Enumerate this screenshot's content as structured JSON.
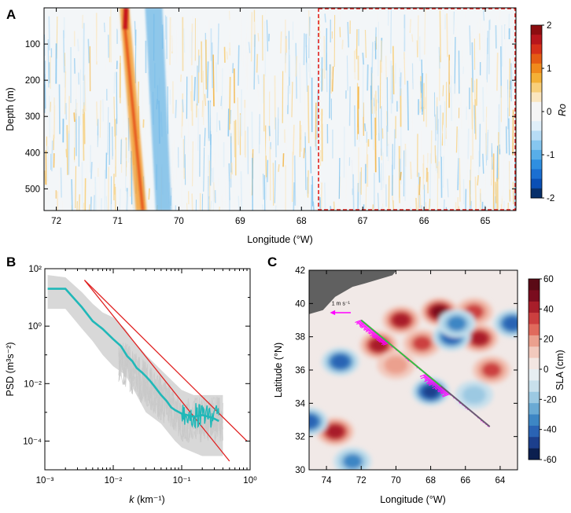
{
  "chart_data": [
    {
      "panel": "A",
      "type": "heatmap",
      "xlabel": "Longitude (°W)",
      "ylabel": "Depth (m)",
      "xlim": [
        72.2,
        64.5
      ],
      "ylim": [
        0,
        560
      ],
      "x_ticks": [
        "72",
        "71",
        "70",
        "69",
        "68",
        "67",
        "66",
        "65"
      ],
      "y_ticks": [
        "100",
        "200",
        "300",
        "400",
        "500"
      ],
      "colorbar": {
        "label": "Ro",
        "range": [
          -2,
          2
        ],
        "ticks": [
          "2",
          "1",
          "0",
          "-1",
          "-2"
        ],
        "colors": [
          "#08306b",
          "#0a4fb5",
          "#1b6fd1",
          "#2f8fe0",
          "#58aee8",
          "#86c6ef",
          "#b7dcf5",
          "#e0eff9",
          "#f5f5f5",
          "#f5f5f5",
          "#fbe6bf",
          "#f8cf7a",
          "#f4b036",
          "#f08a1c",
          "#e55c14",
          "#d6301a",
          "#b7161c",
          "#8c0d10"
        ]
      },
      "features": [
        {
          "name": "positive Ro band",
          "lon_top": 70.85,
          "lon_bottom": 70.55,
          "depth_range": [
            0,
            560
          ],
          "max_ro": 2
        },
        {
          "name": "negative Ro band",
          "lon_top": 70.5,
          "lon_bottom": 70.3,
          "depth_range": [
            0,
            560
          ],
          "min_ro": -1
        }
      ],
      "highlight_box": {
        "lon_range": [
          67.75,
          64.5
        ],
        "depth_range": [
          0,
          560
        ],
        "style": "red dashed"
      }
    },
    {
      "panel": "B",
      "type": "line",
      "scale": "log-log",
      "xlabel": "k (km⁻¹)",
      "ylabel": "PSD (m³s⁻²)",
      "xlim": [
        0.001,
        1
      ],
      "ylim": [
        1e-05,
        100
      ],
      "x_ticks": [
        "10⁻³",
        "10⁻²",
        "10⁻¹",
        "10⁰"
      ],
      "y_ticks": [
        "10²",
        "10⁰",
        "10⁻²",
        "10⁻⁴"
      ],
      "series": [
        {
          "name": "mean PSD",
          "color": "#20b8b8",
          "x": [
            0.0011,
            0.002,
            0.0035,
            0.005,
            0.007,
            0.01,
            0.013,
            0.016,
            0.019,
            0.022,
            0.026,
            0.03,
            0.035,
            0.04,
            0.05,
            0.06,
            0.07,
            0.08,
            0.1,
            0.12,
            0.15,
            0.2,
            0.25,
            0.3,
            0.35
          ],
          "y": [
            20,
            20,
            4.5,
            1.5,
            0.8,
            0.35,
            0.2,
            0.09,
            0.06,
            0.035,
            0.025,
            0.018,
            0.012,
            0.008,
            0.004,
            0.0025,
            0.0015,
            0.0012,
            0.0009,
            0.0008,
            0.0007,
            0.0008,
            0.0007,
            0.0006,
            0.0005
          ]
        },
        {
          "name": "reference slope",
          "color": "#e02020",
          "x": [
            0.0038,
            0.5
          ],
          "y": [
            40,
            2e-05
          ]
        },
        {
          "name": "reference slope",
          "color": "#e02020",
          "x": [
            0.0038,
            0.9
          ],
          "y": [
            40,
            0.0001
          ]
        }
      ],
      "envelope": {
        "name": "individual spectra",
        "color": "#d8d8d8",
        "x": [
          0.0011,
          0.002,
          0.0035,
          0.005,
          0.007,
          0.01,
          0.015,
          0.02,
          0.03,
          0.05,
          0.08,
          0.1,
          0.15,
          0.2,
          0.3,
          0.4
        ],
        "upper": [
          60,
          50,
          15,
          6,
          3,
          2,
          0.8,
          0.3,
          0.1,
          0.03,
          0.01,
          0.006,
          0.004,
          0.004,
          0.004,
          0.004
        ],
        "lower": [
          4,
          4,
          0.8,
          0.3,
          0.1,
          0.04,
          0.02,
          0.006,
          0.001,
          0.0004,
          0.0001,
          6e-05,
          4e-05,
          3e-05,
          3e-05,
          3e-05
        ]
      }
    },
    {
      "panel": "C",
      "type": "heatmap",
      "subtype": "contour map",
      "xlabel": "Longitude (°W)",
      "ylabel": "Latitude (°N)",
      "xlim": [
        75,
        63
      ],
      "ylim": [
        30,
        42
      ],
      "x_ticks": [
        "74",
        "72",
        "70",
        "68",
        "66",
        "64"
      ],
      "y_ticks": [
        "42",
        "40",
        "38",
        "36",
        "34",
        "32",
        "30"
      ],
      "colorbar": {
        "label": "SLA (cm)",
        "range": [
          -60,
          60
        ],
        "ticks": [
          "60",
          "40",
          "20",
          "0",
          "-20",
          "-40",
          "-60"
        ],
        "colors": [
          "#0b1f4f",
          "#1c3f8c",
          "#2a63b4",
          "#3d86c4",
          "#6aaad4",
          "#9cc9e2",
          "#c8e0ec",
          "#e6eef2",
          "#f3e6e2",
          "#f2c9bd",
          "#eba08e",
          "#e06a5c",
          "#cc3f3f",
          "#a81e2a",
          "#7a0c1e",
          "#5a0a16"
        ]
      },
      "land_color": "#606060",
      "eddies": [
        {
          "lon": 67.5,
          "lat": 39.5,
          "sla": 45
        },
        {
          "lon": 69.7,
          "lat": 39.0,
          "sla": 35
        },
        {
          "lon": 65.5,
          "lat": 39.5,
          "sla": 30
        },
        {
          "lon": 71.0,
          "lat": 37.5,
          "sla": 35
        },
        {
          "lon": 68.5,
          "lat": 37.6,
          "sla": 30
        },
        {
          "lon": 65.2,
          "lat": 37.9,
          "sla": 35
        },
        {
          "lon": 64.5,
          "lat": 36.0,
          "sla": 25
        },
        {
          "lon": 70.0,
          "lat": 36.3,
          "sla": 20
        },
        {
          "lon": 73.5,
          "lat": 32.3,
          "sla": 35
        },
        {
          "lon": 66.8,
          "lat": 38.0,
          "sla": -40
        },
        {
          "lon": 73.2,
          "lat": 36.5,
          "sla": -40
        },
        {
          "lon": 68.0,
          "lat": 34.7,
          "sla": -45
        },
        {
          "lon": 75.0,
          "lat": 32.9,
          "sla": -35
        },
        {
          "lon": 66.5,
          "lat": 38.8,
          "sla": -25
        },
        {
          "lon": 72.5,
          "lat": 30.5,
          "sla": -25
        },
        {
          "lon": 63.3,
          "lat": 38.8,
          "sla": -35
        },
        {
          "lon": 65.5,
          "lat": 34.5,
          "sla": -20
        }
      ],
      "track": [
        {
          "lon": 72.0,
          "lat": 39.0
        },
        {
          "lon": 64.6,
          "lat": 32.6
        }
      ],
      "velocity_scale": {
        "label": "1 m s⁻¹",
        "color": "#ff00ff"
      }
    }
  ]
}
